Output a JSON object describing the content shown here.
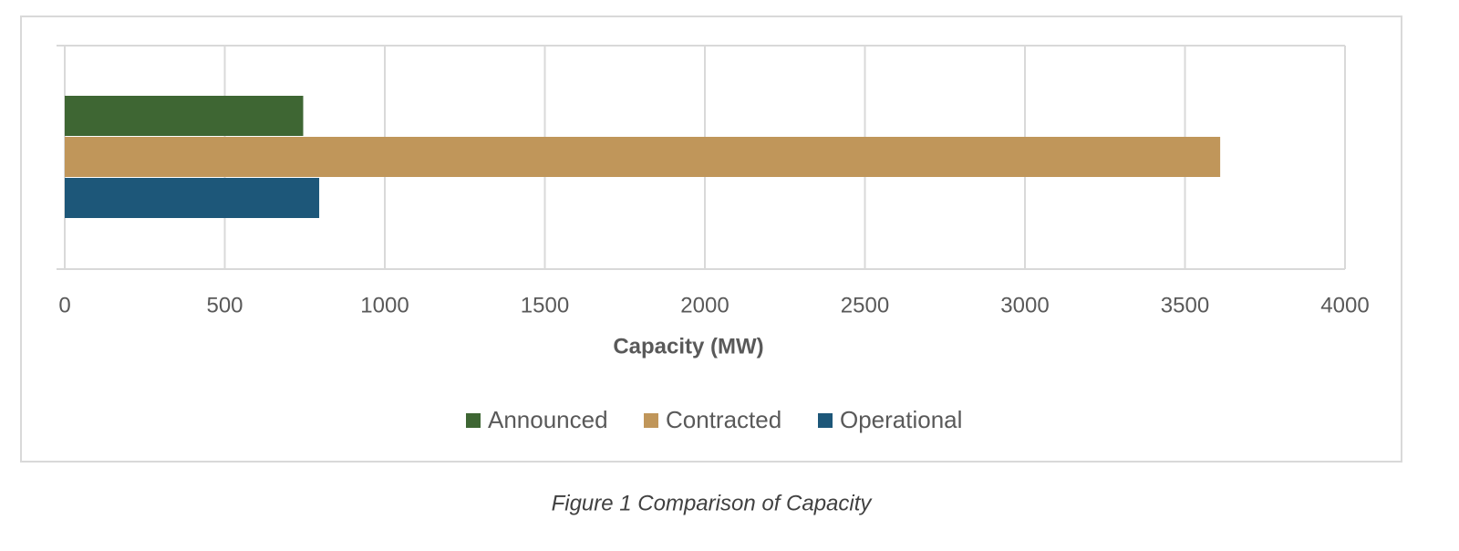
{
  "chart_data": {
    "type": "hbar",
    "title": null,
    "caption": "Figure 1 Comparison of Capacity",
    "xlabel": "Capacity (MW)",
    "categories": [
      null
    ],
    "series": [
      {
        "name": "Announced",
        "color": "#3e6633",
        "values": [
          745
        ]
      },
      {
        "name": "Contracted",
        "color": "#c0965a",
        "values": [
          3610
        ]
      },
      {
        "name": "Operational",
        "color": "#1d5779",
        "values": [
          795
        ]
      }
    ],
    "xlim": [
      0,
      4000
    ],
    "xticks": [
      0,
      500,
      1000,
      1500,
      2000,
      2500,
      3000,
      3500,
      4000
    ],
    "grid": true,
    "legend": "bottom"
  }
}
